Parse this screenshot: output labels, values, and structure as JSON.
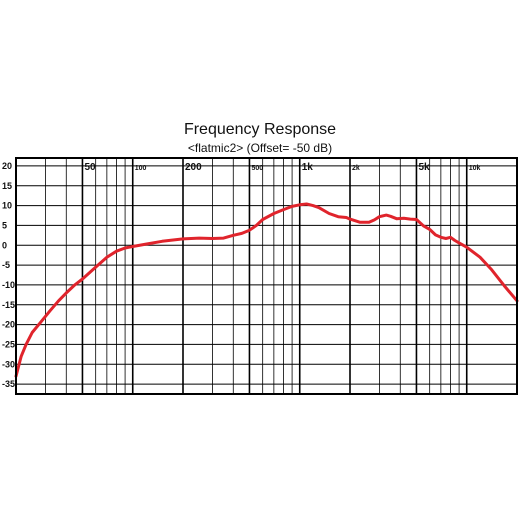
{
  "chart_data": {
    "type": "line",
    "title": "Frequency Response",
    "subtitle": "<flatmic2> (Offset= -50 dB)",
    "xlabel": "",
    "ylabel": "",
    "x_scale": "log",
    "xlim": [
      20,
      20000
    ],
    "ylim": [
      -37.5,
      22
    ],
    "grid": true,
    "line_color": "#e0242c",
    "y_ticks": [
      20,
      15,
      10,
      5,
      0,
      -5,
      -10,
      -15,
      -20,
      -25,
      -30,
      -35
    ],
    "y_tick_labels": [
      "20",
      "15",
      "10",
      "5",
      "0",
      "-5",
      "-10",
      "-15",
      "-20",
      "-25",
      "-30",
      "-35"
    ],
    "x_tick_labels": [
      {
        "value": 50,
        "label": "50",
        "size": "large"
      },
      {
        "value": 100,
        "label": "100",
        "size": "small"
      },
      {
        "value": 200,
        "label": "200",
        "size": "large"
      },
      {
        "value": 500,
        "label": "500",
        "size": "small"
      },
      {
        "value": 1000,
        "label": "1k",
        "size": "large"
      },
      {
        "value": 2000,
        "label": "2k",
        "size": "small"
      },
      {
        "value": 5000,
        "label": "5k",
        "size": "large"
      },
      {
        "value": 10000,
        "label": "10k",
        "size": "small"
      }
    ],
    "series": [
      {
        "x": [
          20,
          21.5,
          23,
          25,
          28,
          32,
          36,
          40,
          45,
          50,
          60,
          70,
          80,
          90,
          100,
          120,
          150,
          200,
          250,
          300,
          350,
          400,
          450,
          500,
          550,
          600,
          700,
          800,
          900,
          1000,
          1100,
          1200,
          1300,
          1500,
          1700,
          1900,
          2000,
          2300,
          2600,
          2800,
          3000,
          3300,
          3500,
          3800,
          4200,
          4600,
          5000,
          5500,
          6000,
          6500,
          7000,
          7500,
          8000,
          8500,
          9000,
          10000,
          12000,
          14000,
          17000,
          20000
        ],
        "y": [
          -33,
          -28,
          -25,
          -22,
          -19.5,
          -16.5,
          -14,
          -12,
          -10,
          -8.5,
          -5.5,
          -3,
          -1.5,
          -0.7,
          -0.3,
          0.3,
          1,
          1.6,
          1.8,
          1.7,
          1.8,
          2.5,
          3,
          3.8,
          5,
          6.5,
          8,
          9,
          9.8,
          10.2,
          10.4,
          10,
          9.5,
          8,
          7.2,
          7,
          6.6,
          5.8,
          5.8,
          6.4,
          7.2,
          7.6,
          7.3,
          6.7,
          6.8,
          6.6,
          6.5,
          4.9,
          4,
          2.6,
          2,
          1.7,
          2,
          1.2,
          0.6,
          -0.5,
          -3,
          -6,
          -10.5,
          -14
        ]
      }
    ]
  }
}
